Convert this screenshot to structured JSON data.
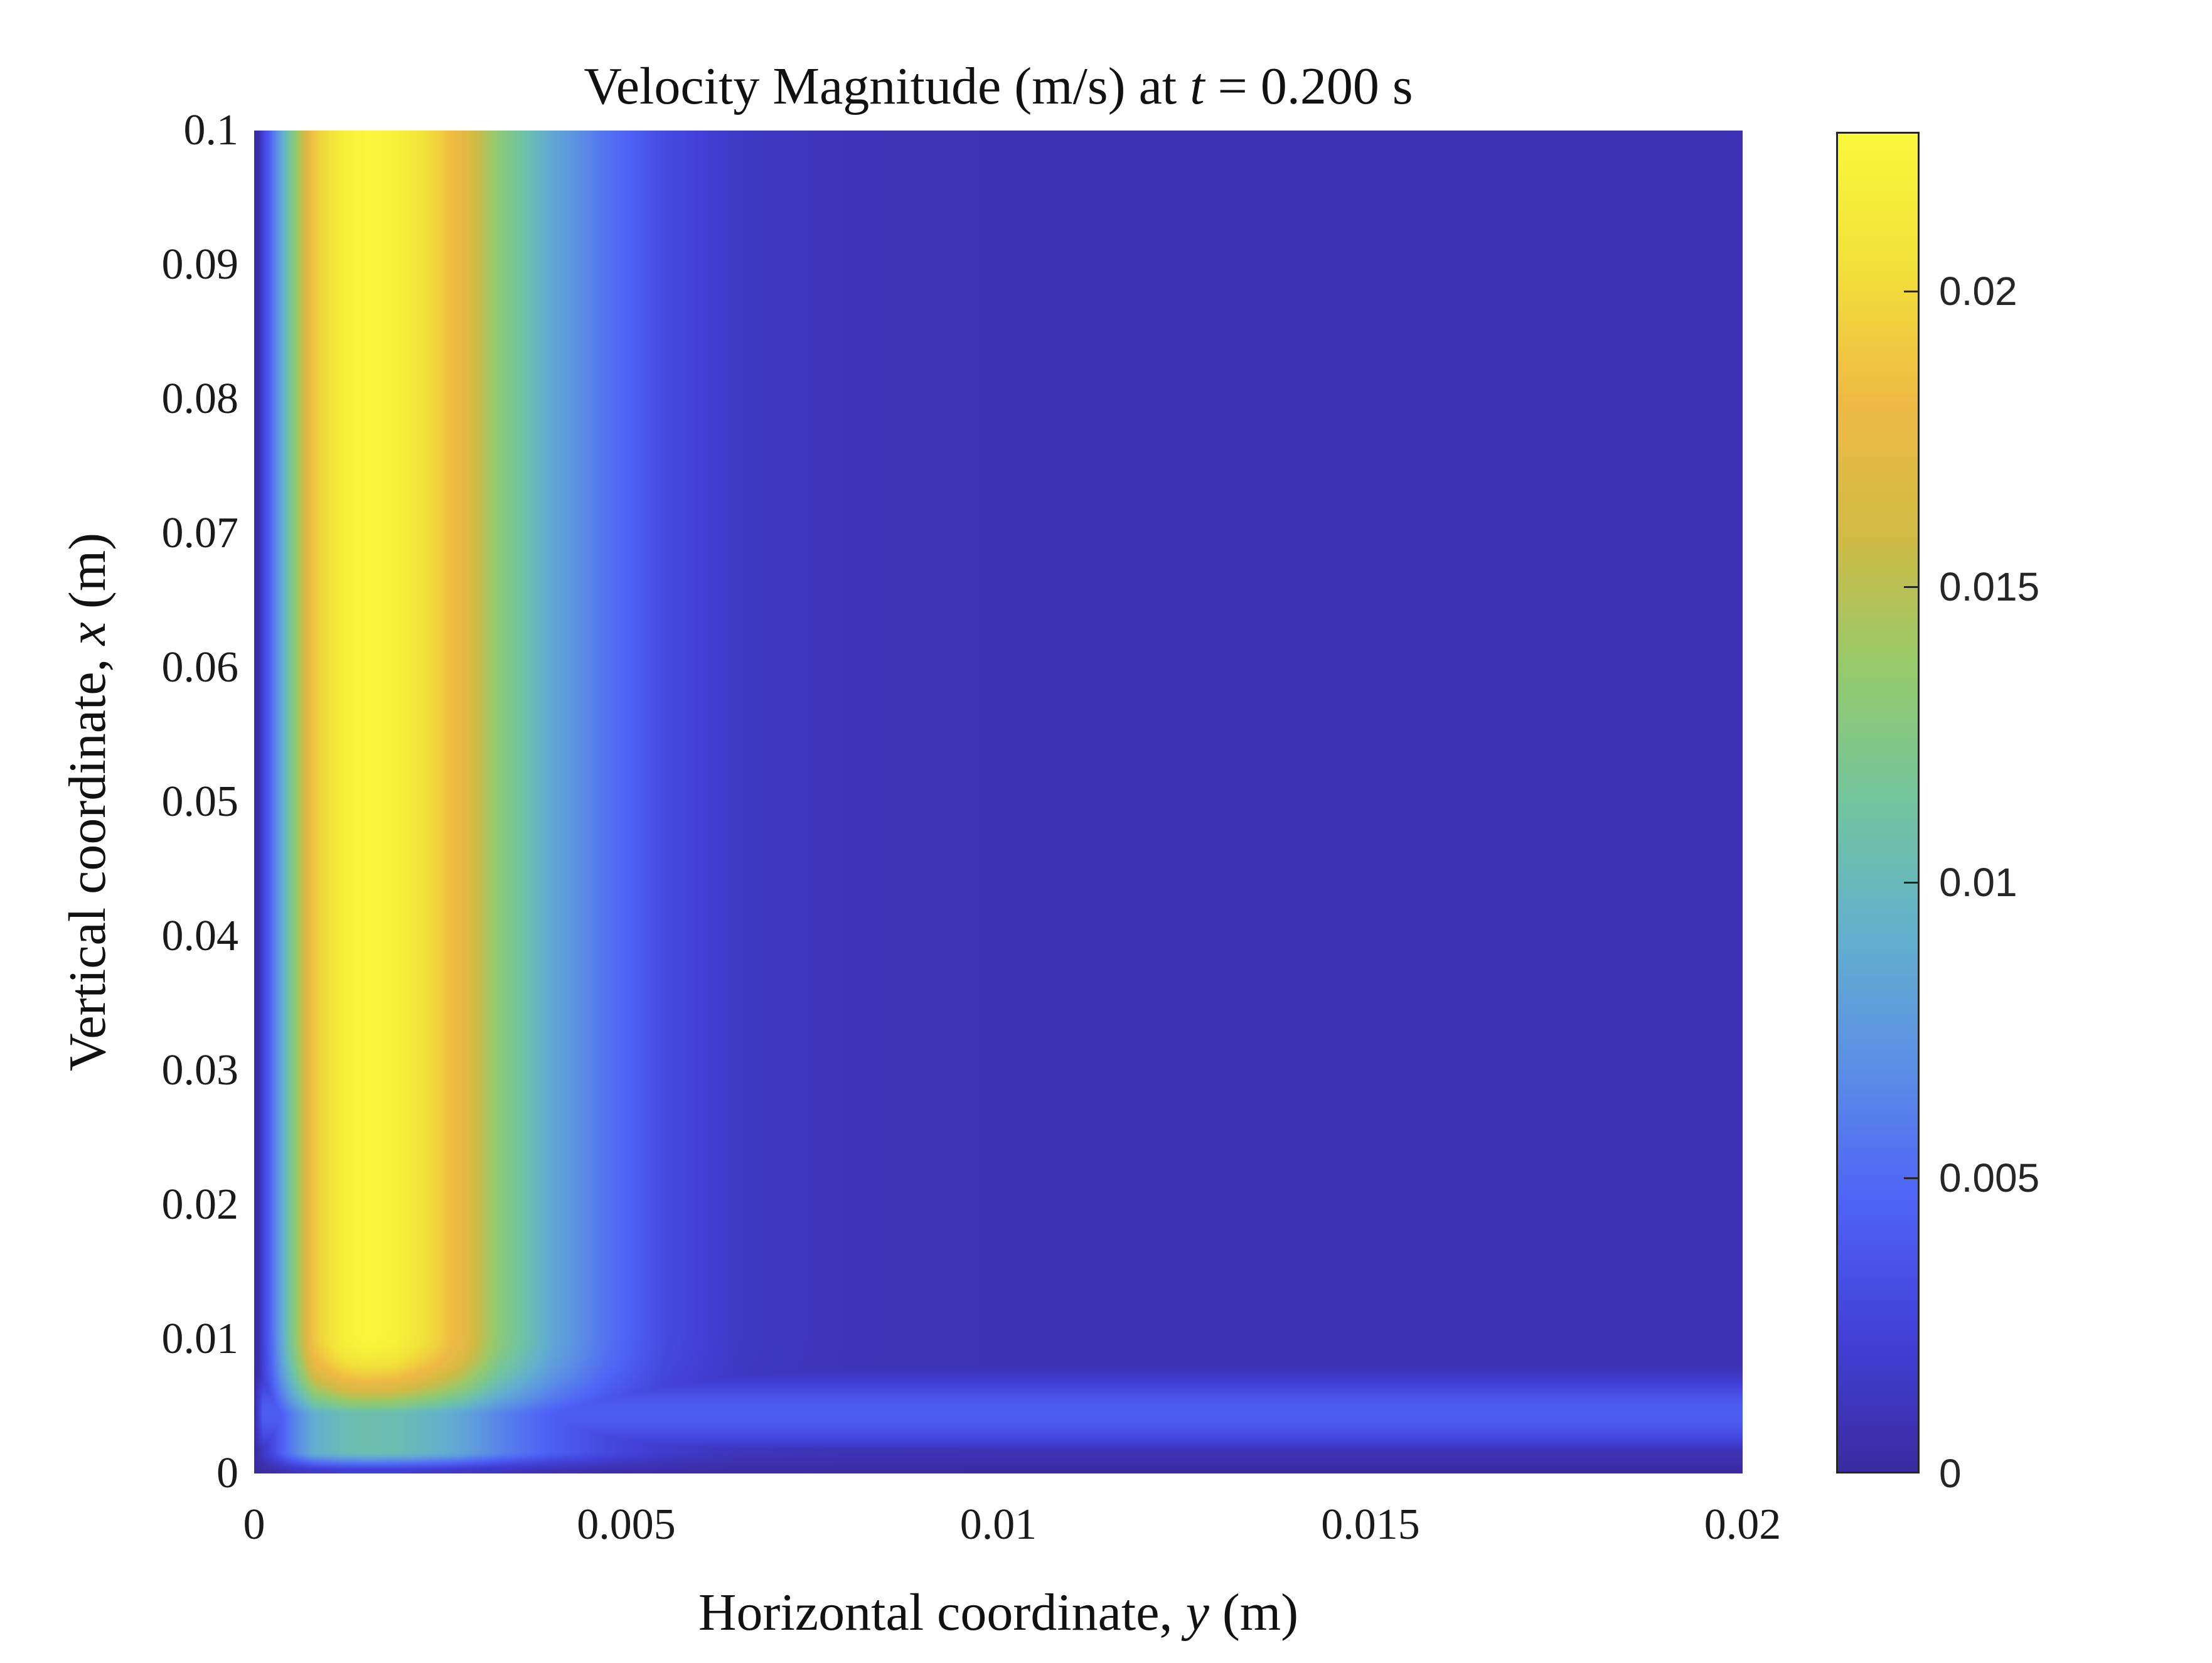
{
  "figure": {
    "title_prefix": "Velocity Magnitude (m/s) at ",
    "title_var": "t",
    "title_suffix": " = 0.200 s",
    "xlabel_prefix": "Horizontal coordinate, ",
    "xlabel_var": "y",
    "xlabel_suffix": " (m)",
    "ylabel_prefix": "Vertical coordinate, ",
    "ylabel_var": "x",
    "ylabel_suffix": " (m)"
  },
  "chart_data": {
    "type": "heatmap",
    "title": "Velocity Magnitude (m/s) at t = 0.200 s",
    "xlabel": "Horizontal coordinate, y (m)",
    "ylabel": "Vertical coordinate, x (m)",
    "xlim": [
      0,
      0.02
    ],
    "ylim": [
      0,
      0.1
    ],
    "xticks": [
      0,
      0.005,
      0.01,
      0.015,
      0.02
    ],
    "xtick_labels": [
      "0",
      "0.005",
      "0.01",
      "0.015",
      "0.02"
    ],
    "yticks": [
      0,
      0.01,
      0.02,
      0.03,
      0.04,
      0.05,
      0.06,
      0.07,
      0.08,
      0.09,
      0.1
    ],
    "ytick_labels": [
      "0",
      "0.01",
      "0.02",
      "0.03",
      "0.04",
      "0.05",
      "0.06",
      "0.07",
      "0.08",
      "0.09",
      "0.1"
    ],
    "grid": false,
    "colormap": "parula",
    "colorbar": {
      "position": "right",
      "clim": [
        0,
        0.0227
      ],
      "ticks": [
        0,
        0.005,
        0.01,
        0.015,
        0.02
      ],
      "tick_labels": [
        "0",
        "0.005",
        "0.01",
        "0.015",
        "0.02"
      ]
    },
    "description": "Near-wall jet along the left wall: a vertical band of high velocity (~0.0227 m/s peak) centered near y = 0.0015 m spanning the full height, decaying to ~0.0008 m/s beyond y ≈ 0.007 m; jet tip rounds off near x ≈ 0.005 m. A weak horizontal band (~0.004 m/s) runs along the bottom at x ≈ 0.002–0.008 m across the whole width; velocity is ~0 at the walls.",
    "horizontal_profile_at_mid_height": {
      "y": [
        0,
        0.0002,
        0.0005,
        0.0008,
        0.0012,
        0.0015,
        0.0019,
        0.0024,
        0.0028,
        0.0033,
        0.004,
        0.0047,
        0.0055,
        0.0065,
        0.008,
        0.01,
        0.02
      ],
      "speed": [
        0,
        0.004,
        0.012,
        0.019,
        0.022,
        0.0227,
        0.0222,
        0.02,
        0.0175,
        0.013,
        0.0085,
        0.0055,
        0.003,
        0.0015,
        0.0009,
        0.0008,
        0.0008
      ]
    },
    "bottom_band": {
      "x_center": 0.0045,
      "x_half_width": 0.0035,
      "peak_speed": 0.0042,
      "floor_at_wall": 0.0008
    },
    "jet_tip_x": 0.0045
  },
  "colormap_stops": [
    "#352a87",
    "#3439a4",
    "#0f5cdd",
    "#1481d6",
    "#06a4ca",
    "#2eb7a4",
    "#87bf77",
    "#d1bb59",
    "#fec832",
    "#f9fb0e"
  ],
  "colormap_display_stops": [
    "#3a2ba0",
    "#4240d8",
    "#4f63f7",
    "#5b8ee6",
    "#63b0cf",
    "#72c59f",
    "#96ca6c",
    "#d1bb45",
    "#efb945",
    "#f2e03a",
    "#f9f83a"
  ]
}
